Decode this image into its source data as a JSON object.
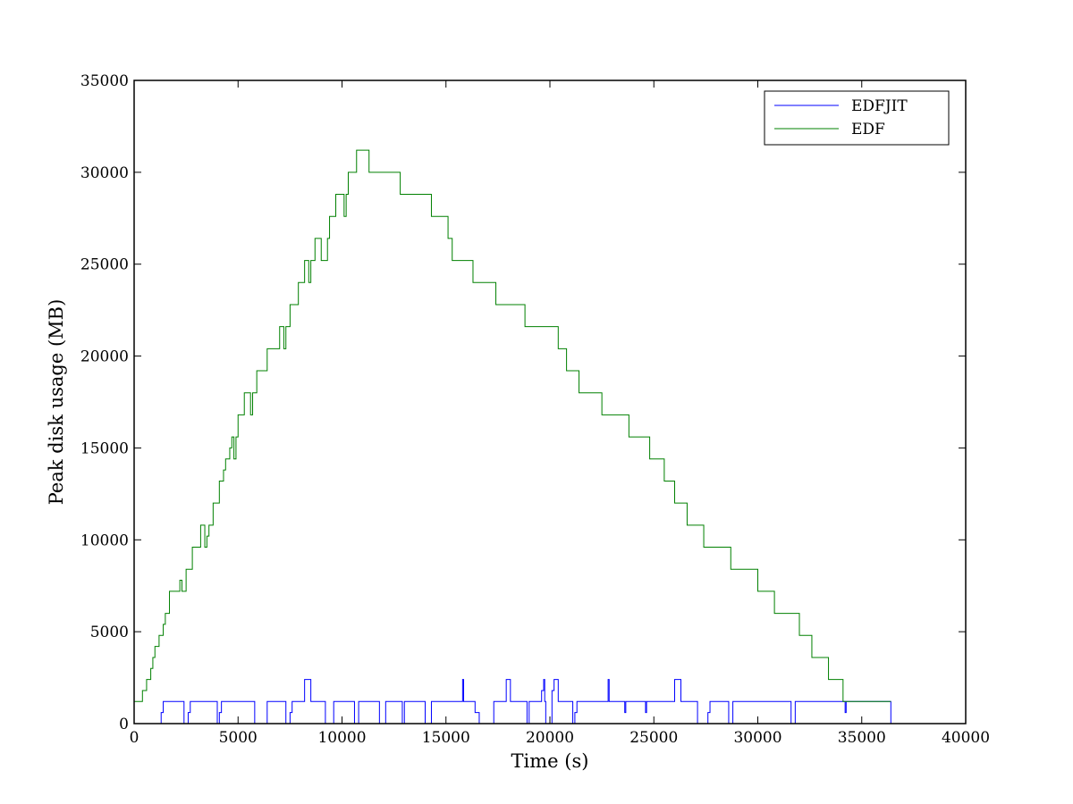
{
  "chart_data": {
    "type": "line",
    "title": "",
    "xlabel": "Time (s)",
    "ylabel": "Peak disk usage (MB)",
    "xlim": [
      0,
      40000
    ],
    "ylim": [
      0,
      35000
    ],
    "xticks": [
      0,
      5000,
      10000,
      15000,
      20000,
      25000,
      30000,
      35000,
      40000
    ],
    "yticks": [
      0,
      5000,
      10000,
      15000,
      20000,
      25000,
      30000,
      35000
    ],
    "xtick_labels": [
      "0",
      "5000",
      "10000",
      "15000",
      "20000",
      "25000",
      "30000",
      "35000",
      "40000"
    ],
    "ytick_labels": [
      "0",
      "5000",
      "10000",
      "15000",
      "20000",
      "25000",
      "30000",
      "35000"
    ],
    "grid": false,
    "legend_position": "top-right",
    "step": true,
    "series": [
      {
        "name": "EDFJIT",
        "color": "#0000ff",
        "x": [
          0,
          1300,
          1400,
          1500,
          2400,
          2600,
          2700,
          4000,
          4100,
          4200,
          5800,
          6400,
          7300,
          7500,
          7600,
          8200,
          8500,
          9200,
          9600,
          10600,
          10800,
          11800,
          12100,
          12900,
          13000,
          14000,
          14300,
          15800,
          15850,
          16400,
          16600,
          17300,
          17900,
          18000,
          18100,
          18900,
          19000,
          19500,
          19600,
          19700,
          19750,
          19800,
          20100,
          20200,
          20300,
          20400,
          21100,
          21200,
          21300,
          22800,
          22850,
          23600,
          23650,
          24600,
          24650,
          26000,
          26300,
          27100,
          27600,
          27700,
          27800,
          28600,
          28800,
          31600,
          31800,
          34200,
          34250,
          34800,
          36400
        ],
        "y": [
          0,
          600,
          1200,
          1200,
          0,
          600,
          1200,
          0,
          600,
          1200,
          0,
          1200,
          0,
          600,
          1200,
          2400,
          1200,
          0,
          1200,
          0,
          1200,
          0,
          1200,
          0,
          1200,
          0,
          1200,
          2400,
          1200,
          600,
          0,
          1200,
          2400,
          2400,
          1200,
          0,
          1200,
          1200,
          1800,
          2400,
          1200,
          0,
          1800,
          2400,
          2400,
          1200,
          0,
          600,
          1200,
          2400,
          1200,
          600,
          1200,
          600,
          1200,
          2400,
          1200,
          0,
          600,
          1200,
          1200,
          0,
          1200,
          0,
          1200,
          600,
          1200,
          1200,
          0
        ]
      },
      {
        "name": "EDF",
        "color": "#008000",
        "x": [
          0,
          400,
          600,
          800,
          900,
          1000,
          1200,
          1400,
          1500,
          1600,
          1700,
          2200,
          2300,
          2500,
          2800,
          3200,
          3400,
          3500,
          3600,
          3800,
          4100,
          4300,
          4400,
          4500,
          4600,
          4700,
          4800,
          4900,
          5000,
          5300,
          5600,
          5700,
          5900,
          6400,
          7000,
          7200,
          7300,
          7400,
          7500,
          7900,
          8200,
          8400,
          8500,
          8600,
          8700,
          9000,
          9300,
          9400,
          9600,
          9700,
          10100,
          10200,
          10300,
          10700,
          11000,
          11300,
          11900,
          12800,
          13000,
          14300,
          14500,
          15100,
          15300,
          16000,
          16300,
          16700,
          17400,
          18400,
          18800,
          19300,
          20400,
          20600,
          20800,
          21400,
          22500,
          23800,
          24100,
          24800,
          25500,
          26000,
          26600,
          27400,
          28700,
          29100,
          30000,
          30800,
          31300,
          32000,
          32600,
          33400,
          34100,
          34700,
          35300,
          36400
        ],
        "y": [
          1200,
          1800,
          2400,
          3000,
          3600,
          4200,
          4800,
          5400,
          6000,
          6000,
          7200,
          7800,
          7200,
          8400,
          9600,
          10800,
          9600,
          10200,
          10800,
          12000,
          13200,
          13800,
          14400,
          14400,
          15000,
          15600,
          14400,
          15600,
          16800,
          18000,
          16800,
          18000,
          19200,
          20400,
          21600,
          20400,
          21600,
          21600,
          22800,
          24000,
          25200,
          24000,
          25200,
          25200,
          26400,
          25200,
          26400,
          27600,
          27600,
          28800,
          27600,
          28800,
          30000,
          31200,
          31200,
          30000,
          30000,
          28800,
          28800,
          27600,
          27600,
          26400,
          25200,
          25200,
          24000,
          24000,
          22800,
          22800,
          21600,
          21600,
          20400,
          20400,
          19200,
          18000,
          16800,
          15600,
          15600,
          14400,
          13200,
          12000,
          10800,
          9600,
          8400,
          8400,
          7200,
          6000,
          6000,
          4800,
          3600,
          2400,
          1200,
          1200,
          1200,
          1200
        ]
      }
    ]
  }
}
